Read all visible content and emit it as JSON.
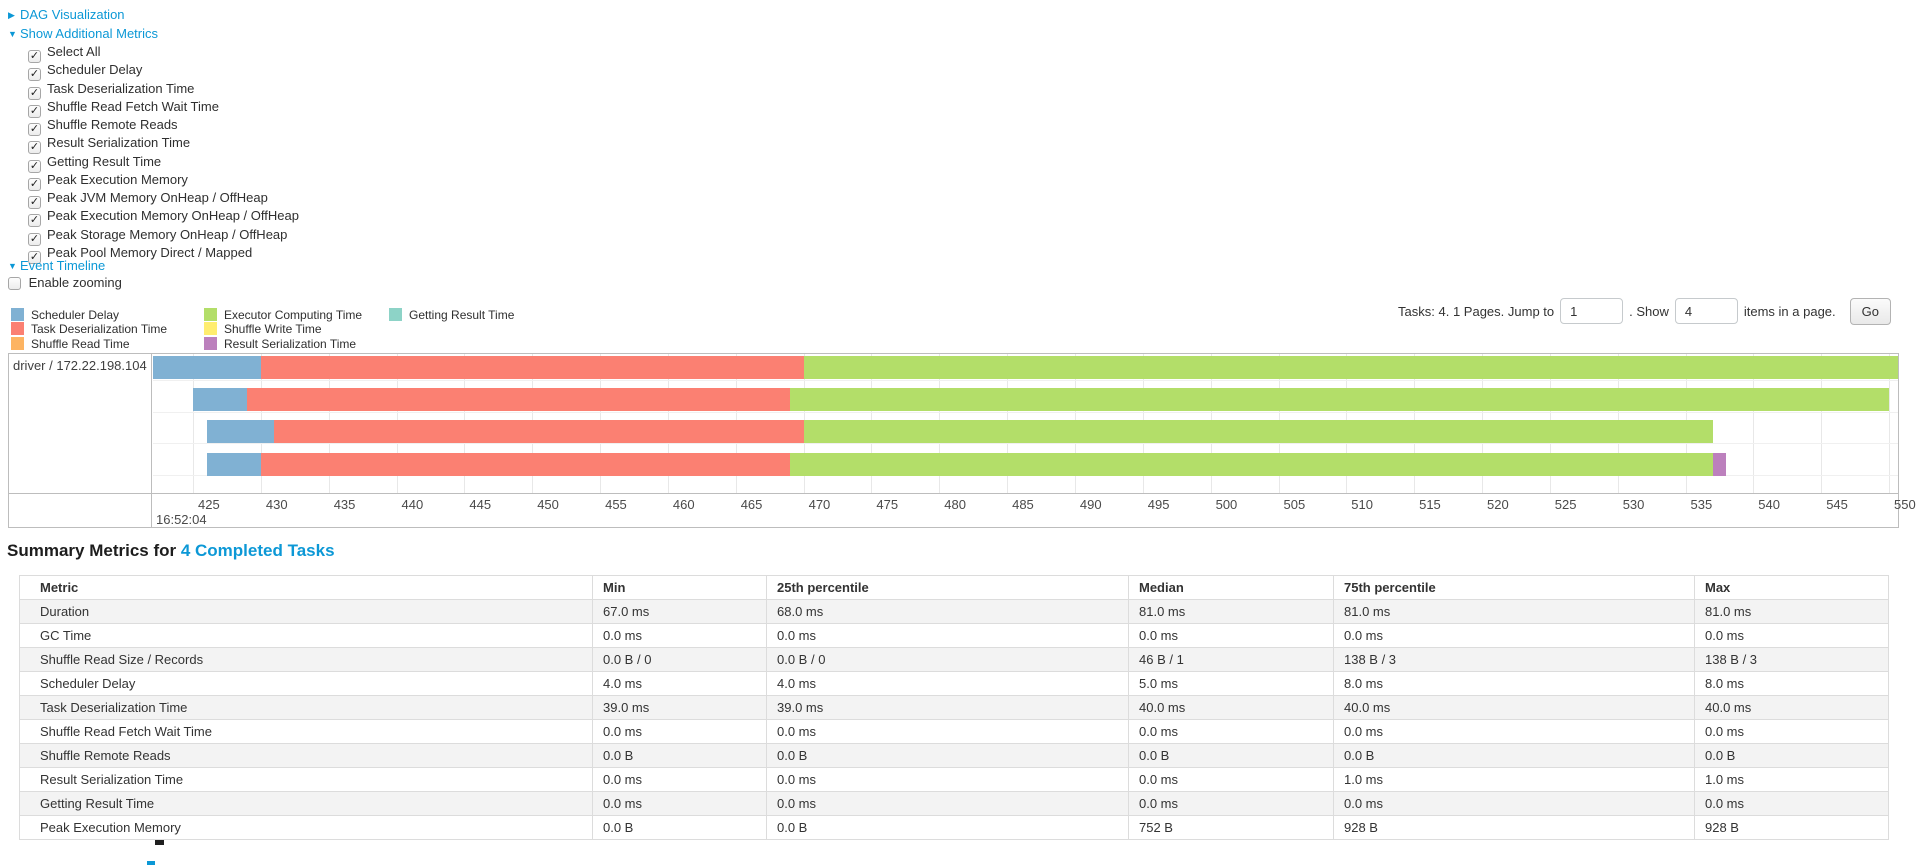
{
  "sections": {
    "dag": {
      "label": "DAG Visualization",
      "arrow": "▶"
    },
    "additional_metrics": {
      "label": "Show Additional Metrics",
      "arrow": "▼",
      "items": [
        {
          "label": "Select All",
          "checked": true
        },
        {
          "label": "Scheduler Delay",
          "checked": true
        },
        {
          "label": "Task Deserialization Time",
          "checked": true
        },
        {
          "label": "Shuffle Read Fetch Wait Time",
          "checked": true
        },
        {
          "label": "Shuffle Remote Reads",
          "checked": true
        },
        {
          "label": "Result Serialization Time",
          "checked": true
        },
        {
          "label": "Getting Result Time",
          "checked": true
        },
        {
          "label": "Peak Execution Memory",
          "checked": true
        },
        {
          "label": "Peak JVM Memory OnHeap / OffHeap",
          "checked": true
        },
        {
          "label": "Peak Execution Memory OnHeap / OffHeap",
          "checked": true
        },
        {
          "label": "Peak Storage Memory OnHeap / OffHeap",
          "checked": true
        },
        {
          "label": "Peak Pool Memory Direct / Mapped",
          "checked": true
        }
      ]
    },
    "event_timeline": {
      "label": "Event Timeline",
      "arrow": "▼",
      "enable_zooming_label": "Enable zooming",
      "enable_zooming_checked": false
    }
  },
  "pagination": {
    "prefix": "Tasks: 4. 1 Pages. Jump to",
    "jump_value": "1",
    "mid": ". Show",
    "show_value": "4",
    "suffix": "items in a page.",
    "go_label": "Go"
  },
  "chart_data": {
    "type": "bar",
    "title": "Event Timeline",
    "orientation": "horizontal-time-gantt",
    "group_label": "driver / 172.22.198.104",
    "x_axis": {
      "major_label": "16:52:04",
      "unit": "ms within second",
      "tick_start": 425,
      "tick_end": 550,
      "tick_step": 5,
      "window": [
        422.05,
        550.7
      ],
      "grid": true
    },
    "legend_columns": [
      [
        {
          "label": "Scheduler Delay",
          "key": "scheduler-delay",
          "color": "#80B1D3"
        },
        {
          "label": "Task Deserialization Time",
          "key": "task-deserialization-time",
          "color": "#FB8072"
        },
        {
          "label": "Shuffle Read Time",
          "key": "shuffle-read-time",
          "color": "#FDB462"
        }
      ],
      [
        {
          "label": "Executor Computing Time",
          "key": "executor-computing-time",
          "color": "#B3DE69"
        },
        {
          "label": "Shuffle Write Time",
          "key": "shuffle-write-time",
          "color": "#FFED6F"
        },
        {
          "label": "Result Serialization Time",
          "key": "result-serialization-time",
          "color": "#BC80BD"
        }
      ],
      [
        {
          "label": "Getting Result Time",
          "key": "getting-result-time",
          "color": "#8DD3C7"
        }
      ]
    ],
    "tasks": [
      {
        "name": "task-row-1",
        "segments": [
          {
            "key": "scheduler-delay",
            "from": 422.05,
            "to": 430
          },
          {
            "key": "task-deserialization-time",
            "from": 430,
            "to": 470
          },
          {
            "key": "executor-computing-time",
            "from": 470,
            "to": 550.7
          }
        ]
      },
      {
        "name": "task-row-2",
        "segments": [
          {
            "key": "scheduler-delay",
            "from": 425,
            "to": 429
          },
          {
            "key": "task-deserialization-time",
            "from": 429,
            "to": 469
          },
          {
            "key": "executor-computing-time",
            "from": 469,
            "to": 550
          }
        ]
      },
      {
        "name": "task-row-3",
        "segments": [
          {
            "key": "scheduler-delay",
            "from": 426,
            "to": 431
          },
          {
            "key": "task-deserialization-time",
            "from": 431,
            "to": 470
          },
          {
            "key": "executor-computing-time",
            "from": 470,
            "to": 537
          }
        ]
      },
      {
        "name": "task-row-4",
        "segments": [
          {
            "key": "scheduler-delay",
            "from": 426,
            "to": 430
          },
          {
            "key": "task-deserialization-time",
            "from": 430,
            "to": 469
          },
          {
            "key": "executor-computing-time",
            "from": 469,
            "to": 537
          },
          {
            "key": "result-serialization-time",
            "from": 537,
            "to": 538
          }
        ]
      }
    ]
  },
  "summary": {
    "title_prefix": "Summary Metrics for ",
    "title_link": "4 Completed Tasks",
    "table": {
      "columns": [
        "Metric",
        "Min",
        "25th percentile",
        "Median",
        "75th percentile",
        "Max"
      ],
      "rows": [
        [
          "Duration",
          "67.0 ms",
          "68.0 ms",
          "81.0 ms",
          "81.0 ms",
          "81.0 ms"
        ],
        [
          "GC Time",
          "0.0 ms",
          "0.0 ms",
          "0.0 ms",
          "0.0 ms",
          "0.0 ms"
        ],
        [
          "Shuffle Read Size / Records",
          "0.0 B / 0",
          "0.0 B / 0",
          "46 B / 1",
          "138 B / 3",
          "138 B / 3"
        ],
        [
          "Scheduler Delay",
          "4.0 ms",
          "4.0 ms",
          "5.0 ms",
          "8.0 ms",
          "8.0 ms"
        ],
        [
          "Task Deserialization Time",
          "39.0 ms",
          "39.0 ms",
          "40.0 ms",
          "40.0 ms",
          "40.0 ms"
        ],
        [
          "Shuffle Read Fetch Wait Time",
          "0.0 ms",
          "0.0 ms",
          "0.0 ms",
          "0.0 ms",
          "0.0 ms"
        ],
        [
          "Shuffle Remote Reads",
          "0.0 B",
          "0.0 B",
          "0.0 B",
          "0.0 B",
          "0.0 B"
        ],
        [
          "Result Serialization Time",
          "0.0 ms",
          "0.0 ms",
          "0.0 ms",
          "1.0 ms",
          "1.0 ms"
        ],
        [
          "Getting Result Time",
          "0.0 ms",
          "0.0 ms",
          "0.0 ms",
          "0.0 ms",
          "0.0 ms"
        ],
        [
          "Peak Execution Memory",
          "0.0 B",
          "0.0 B",
          "752 B",
          "928 B",
          "928 B"
        ]
      ]
    }
  },
  "colors": {
    "link": "#0c98d6",
    "chart_border": "#bdbdbd",
    "gridline": "#e8e8e8",
    "table_stripe": "#f3f3f3"
  }
}
